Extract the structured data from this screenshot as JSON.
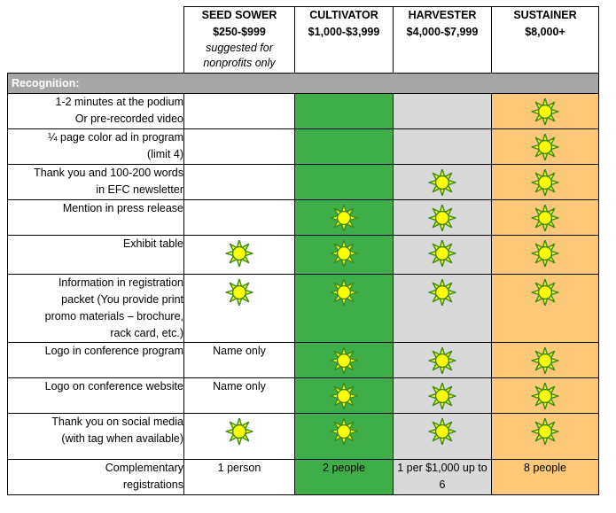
{
  "tiers": [
    {
      "name": "SEED SOWER",
      "price": "$250-$999",
      "note_line1": "suggested for",
      "note_line2": "nonprofits only"
    },
    {
      "name": "CULTIVATOR",
      "price": "$1,000-$3,999"
    },
    {
      "name": "HARVESTER",
      "price": "$4,000-$7,999"
    },
    {
      "name": "SUSTAINER",
      "price": "$8,000+"
    }
  ],
  "section_label": "Recognition:",
  "rows": [
    {
      "label_lines": [
        "1-2 minutes at the podium",
        "Or pre-recorded video"
      ],
      "cells": [
        "",
        "",
        "",
        "sun"
      ]
    },
    {
      "label_lines": [
        "¼ page color ad in program",
        "(limit 4)"
      ],
      "cells": [
        "",
        "",
        "",
        "sun"
      ]
    },
    {
      "label_lines": [
        "Thank you and 100-200 words",
        "in EFC newsletter"
      ],
      "cells": [
        "",
        "",
        "sun",
        "sun"
      ]
    },
    {
      "label_lines": [
        "Mention in press release"
      ],
      "cells": [
        "",
        "sun",
        "sun",
        "sun"
      ]
    },
    {
      "label_lines": [
        "Exhibit table"
      ],
      "cells": [
        "sun",
        "sun",
        "sun",
        "sun"
      ]
    },
    {
      "label_lines": [
        "Information in registration",
        "packet (You provide print",
        "promo materials – brochure,",
        "rack card, etc.)"
      ],
      "cells": [
        "sun",
        "sun",
        "sun",
        "sun"
      ]
    },
    {
      "label_lines": [
        "Logo in conference program"
      ],
      "cells": [
        "Name only",
        "sun",
        "sun",
        "sun"
      ]
    },
    {
      "label_lines": [
        "Logo on conference website"
      ],
      "cells": [
        "Name only",
        "sun",
        "sun",
        "sun"
      ]
    },
    {
      "label_lines": [
        "Thank you on social media",
        "(with tag when available)"
      ],
      "cells": [
        "sun",
        "sun",
        "sun",
        "sun"
      ]
    },
    {
      "label_lines": [
        "Complementary",
        "registrations"
      ],
      "cells": [
        "1 person",
        "2 people",
        "1 per $1,000 up to 6",
        "8 people"
      ]
    }
  ],
  "icon": "sun-icon",
  "colors": {
    "cultivator": "#3fae49",
    "harvester": "#d9d9d9",
    "sustainer": "#fdc877",
    "section": "#a6a6a6",
    "sun_fill": "#ffff00",
    "sun_stroke": "#3a8a1e"
  }
}
